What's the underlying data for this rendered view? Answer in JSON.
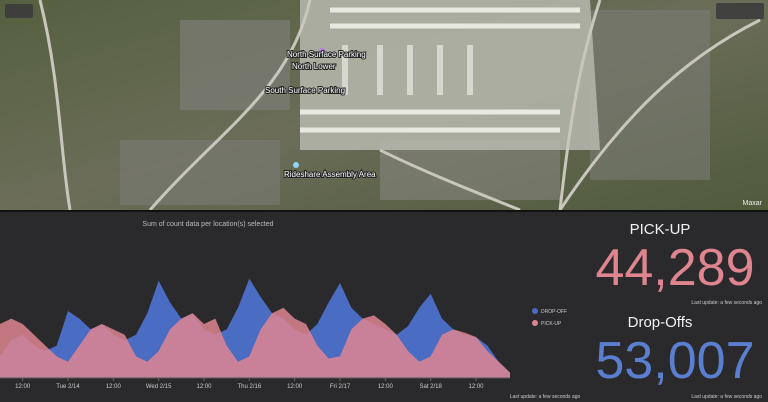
{
  "map": {
    "labels": [
      "North Surface Parking",
      "North Lower",
      "South Surface Parking",
      "Rideshare Assembly Area"
    ],
    "attribution": "Maxar"
  },
  "chart_data": {
    "type": "area",
    "title": "Sum of count data per location(s) selected",
    "x": [
      6,
      9,
      12,
      15,
      18,
      21,
      24,
      27,
      30,
      33,
      36,
      39,
      42,
      45,
      48,
      51,
      54,
      57,
      60,
      63,
      66,
      69,
      72,
      75,
      78,
      81,
      84,
      87,
      90,
      93,
      96,
      99,
      102,
      105,
      108,
      111,
      114,
      117,
      120,
      123,
      126,
      129,
      132,
      135,
      138,
      141
    ],
    "xlim": [
      6,
      141
    ],
    "xticks": [
      {
        "value": 12,
        "label": "12:00"
      },
      {
        "value": 24,
        "label": "Tue 2/14"
      },
      {
        "value": 36,
        "label": "12:00"
      },
      {
        "value": 48,
        "label": "Wed 2/15"
      },
      {
        "value": 60,
        "label": "12:00"
      },
      {
        "value": 72,
        "label": "Thu 2/16"
      },
      {
        "value": 84,
        "label": "12:00"
      },
      {
        "value": 96,
        "label": "Fri 2/17"
      },
      {
        "value": 108,
        "label": "12:00"
      },
      {
        "value": 120,
        "label": "Sat 2/18"
      },
      {
        "value": 132,
        "label": "12:00"
      }
    ],
    "ylim": [
      0,
      100
    ],
    "series": [
      {
        "name": "DROP-OFF",
        "color": "#4a6cc2",
        "values": [
          20,
          35,
          40,
          30,
          25,
          30,
          62,
          55,
          45,
          50,
          40,
          35,
          40,
          60,
          90,
          70,
          55,
          60,
          45,
          40,
          45,
          65,
          92,
          75,
          60,
          55,
          45,
          40,
          50,
          70,
          88,
          65,
          55,
          50,
          45,
          40,
          48,
          65,
          78,
          55,
          45,
          40,
          38,
          30,
          15,
          5
        ]
      },
      {
        "name": "PICK-UP",
        "color": "#de8590",
        "values": [
          50,
          55,
          50,
          40,
          30,
          20,
          15,
          30,
          45,
          50,
          45,
          40,
          20,
          15,
          25,
          45,
          55,
          60,
          50,
          55,
          30,
          15,
          20,
          45,
          60,
          65,
          55,
          50,
          30,
          18,
          20,
          45,
          55,
          58,
          50,
          40,
          25,
          15,
          20,
          40,
          45,
          42,
          38,
          25,
          15,
          5
        ]
      }
    ],
    "footnote": "Last update: a few seconds ago"
  },
  "indicators": [
    {
      "title": "PICK-UP",
      "value": 44289,
      "value_label": "44,289",
      "color": "#de8590",
      "footnote": "Last update: a few seconds ago"
    },
    {
      "title": "Drop-Offs",
      "value": 53007,
      "value_label": "53,007",
      "color": "#5b7fd0",
      "footnote": "Last update: a few seconds ago"
    }
  ]
}
